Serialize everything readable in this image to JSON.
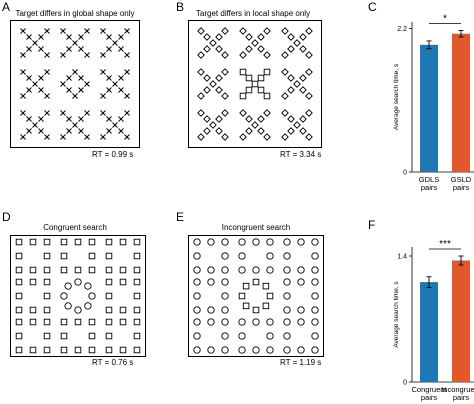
{
  "panels": {
    "A": {
      "label": "A",
      "title": "Target differs in global shape only",
      "rt": "RT = 0.99 s"
    },
    "B": {
      "label": "B",
      "title": "Target differs in local shape only",
      "rt": "RT = 3.34 s"
    },
    "C": {
      "label": "C"
    },
    "D": {
      "label": "D",
      "title": "Congruent search",
      "rt": "RT = 0.76 s"
    },
    "E": {
      "label": "E",
      "title": "Incongruent search",
      "rt": "RT = 1.19 s"
    },
    "F": {
      "label": "F"
    }
  },
  "chart_data": [
    {
      "type": "bar",
      "panel": "C",
      "categories": [
        "GDLS\npairs",
        "GSLD\npairs"
      ],
      "values": [
        1.95,
        2.12
      ],
      "errors": [
        0.06,
        0.05
      ],
      "colors": [
        "#1f77b4",
        "#e2572b"
      ],
      "ylabel": "Average search time, s",
      "ylim": [
        0,
        2.3
      ],
      "yticks": [
        0,
        2.2
      ],
      "ytick_labels": [
        "0",
        "2.2"
      ],
      "significance": "*"
    },
    {
      "type": "bar",
      "panel": "F",
      "categories": [
        "Congruent\npairs",
        "Incongruent\npairs"
      ],
      "values": [
        1.11,
        1.35
      ],
      "errors": [
        0.06,
        0.05
      ],
      "colors": [
        "#1f77b4",
        "#e2572b"
      ],
      "ylabel": "Average search time, s",
      "ylim": [
        0,
        1.5
      ],
      "yticks": [
        0,
        1.4
      ],
      "ytick_labels": [
        "0",
        "1.4"
      ],
      "significance": "***"
    }
  ]
}
